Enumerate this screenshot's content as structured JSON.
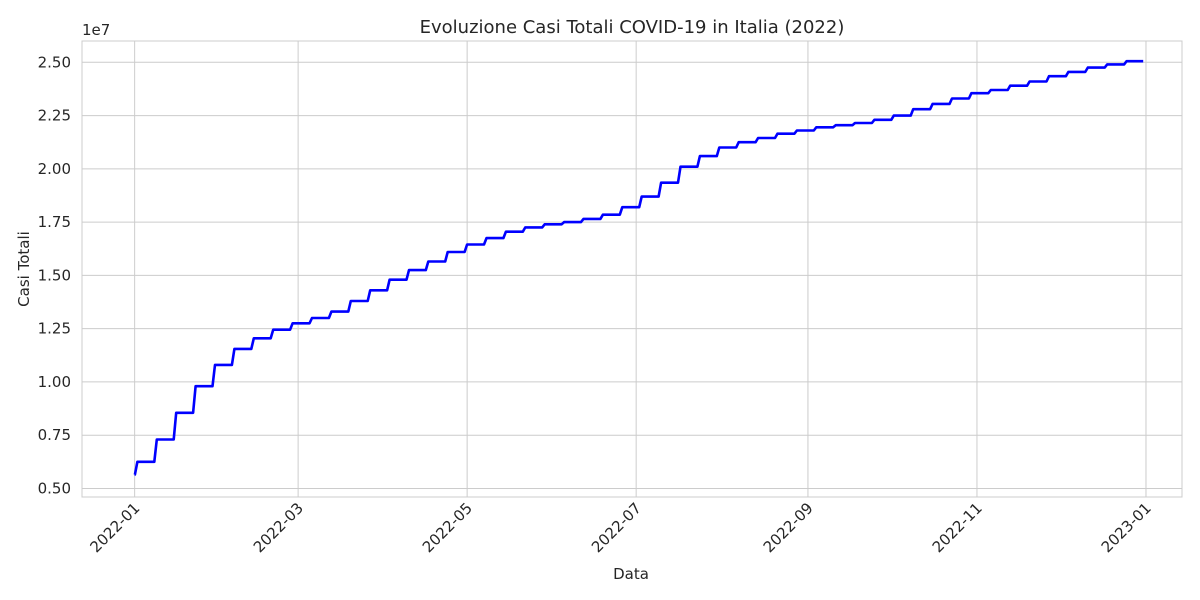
{
  "chart_data": {
    "type": "line",
    "title": "Evoluzione Casi Totali COVID-19 in Italia (2022)",
    "xlabel": "Data",
    "ylabel": "Casi Totali",
    "y_offset_label": "1e7",
    "y_multiplier": 10000000,
    "ylim": [
      0.46,
      2.6
    ],
    "xlim": [
      "2021-12-13",
      "2023-01-14"
    ],
    "y_ticks": [
      0.5,
      0.75,
      1.0,
      1.25,
      1.5,
      1.75,
      2.0,
      2.25,
      2.5
    ],
    "y_tick_labels": [
      "0.50",
      "0.75",
      "1.00",
      "1.25",
      "1.50",
      "1.75",
      "2.00",
      "2.25",
      "2.50"
    ],
    "x_ticks": [
      "2022-01-01",
      "2022-03-01",
      "2022-05-01",
      "2022-07-01",
      "2022-09-01",
      "2022-11-01",
      "2023-01-01"
    ],
    "x_tick_labels": [
      "2022-01",
      "2022-03",
      "2022-05",
      "2022-07",
      "2022-09",
      "2022-11",
      "2023-01"
    ],
    "grid": true,
    "legend": "none",
    "series": [
      {
        "color": "#0000ff",
        "step": true,
        "x": [
          "2022-01-01",
          "2022-01-02",
          "2022-01-09",
          "2022-01-16",
          "2022-01-23",
          "2022-01-30",
          "2022-02-06",
          "2022-02-13",
          "2022-02-20",
          "2022-02-27",
          "2022-03-06",
          "2022-03-13",
          "2022-03-20",
          "2022-03-27",
          "2022-04-03",
          "2022-04-10",
          "2022-04-17",
          "2022-04-24",
          "2022-05-01",
          "2022-05-08",
          "2022-05-15",
          "2022-05-22",
          "2022-05-29",
          "2022-06-05",
          "2022-06-12",
          "2022-06-19",
          "2022-06-26",
          "2022-07-03",
          "2022-07-10",
          "2022-07-17",
          "2022-07-24",
          "2022-07-31",
          "2022-08-07",
          "2022-08-14",
          "2022-08-21",
          "2022-08-28",
          "2022-09-04",
          "2022-09-11",
          "2022-09-18",
          "2022-09-25",
          "2022-10-02",
          "2022-10-09",
          "2022-10-16",
          "2022-10-23",
          "2022-10-30",
          "2022-11-06",
          "2022-11-13",
          "2022-11-20",
          "2022-11-27",
          "2022-12-04",
          "2022-12-11",
          "2022-12-18",
          "2022-12-25",
          "2022-12-31"
        ],
        "y": [
          5650000,
          6250000,
          7300000,
          8550000,
          9800000,
          10800000,
          11550000,
          12050000,
          12450000,
          12750000,
          13000000,
          13300000,
          13800000,
          14300000,
          14800000,
          15250000,
          15650000,
          16100000,
          16450000,
          16750000,
          17050000,
          17250000,
          17400000,
          17500000,
          17650000,
          17850000,
          18200000,
          18700000,
          19350000,
          20100000,
          20600000,
          21000000,
          21250000,
          21450000,
          21650000,
          21800000,
          21950000,
          22050000,
          22150000,
          22300000,
          22500000,
          22800000,
          23050000,
          23300000,
          23550000,
          23700000,
          23900000,
          24100000,
          24350000,
          24550000,
          24750000,
          24900000,
          25050000,
          25050000
        ]
      }
    ]
  }
}
